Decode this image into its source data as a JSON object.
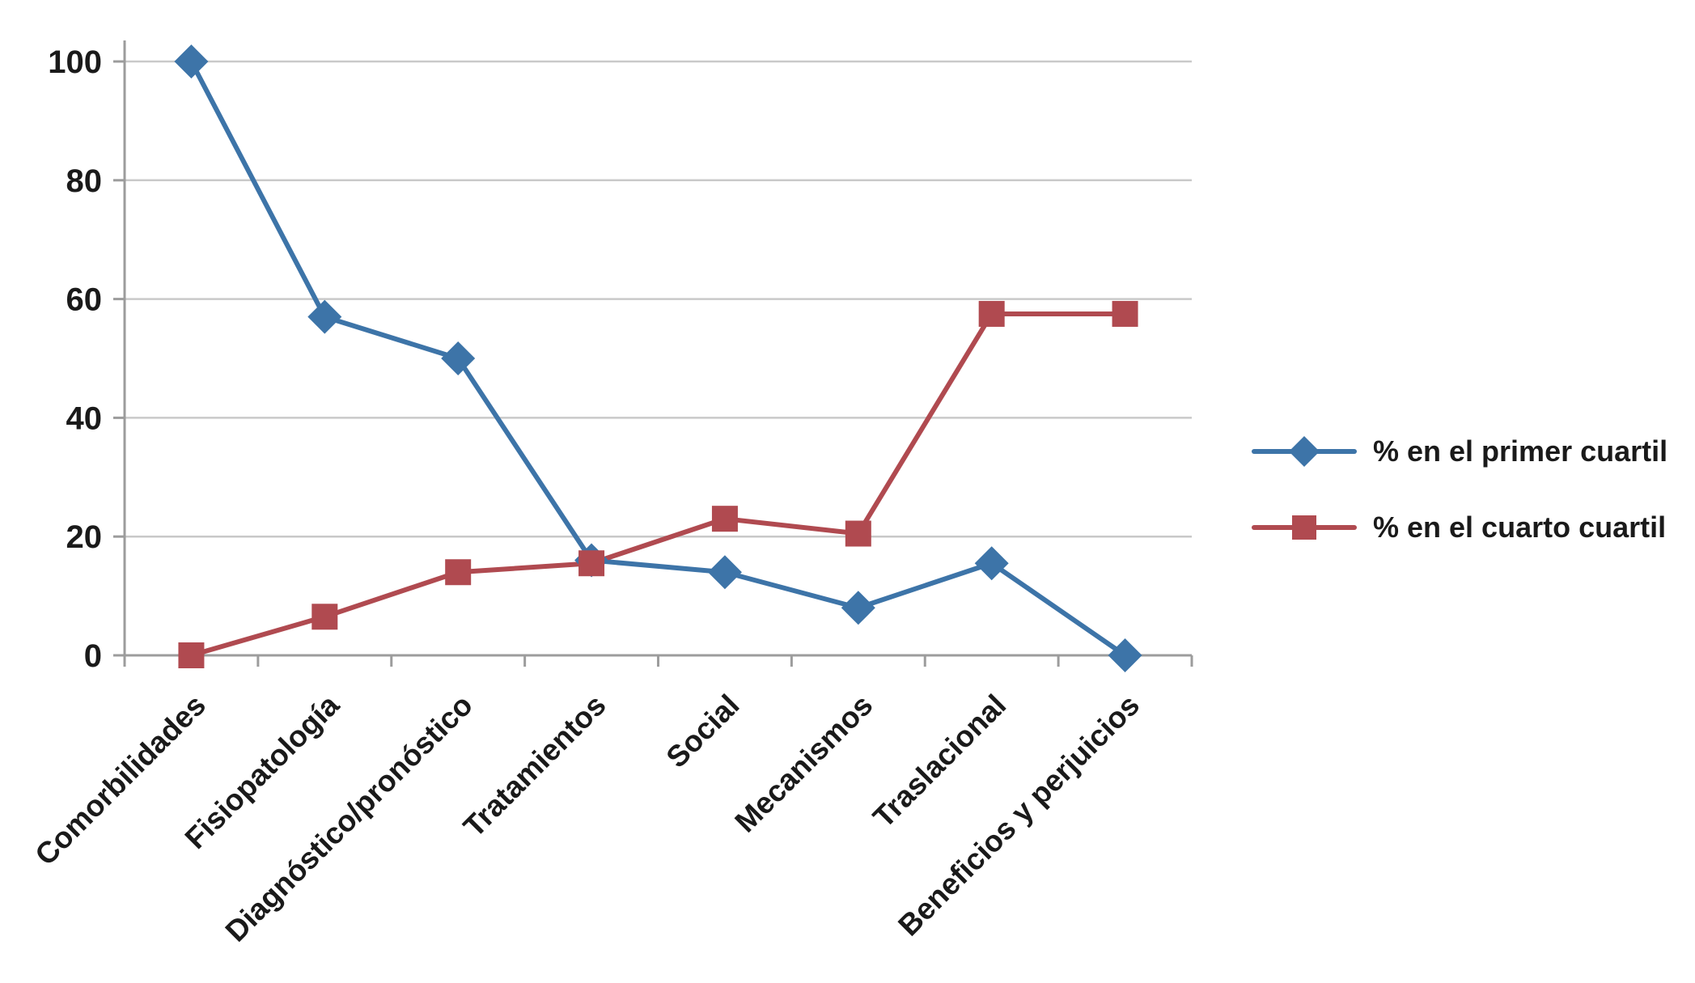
{
  "chart_data": {
    "type": "line",
    "categories": [
      "Comorbilidades",
      "Fisiopatología",
      "Diagnóstico/pronóstico",
      "Tratamientos",
      "Social",
      "Mecanismos",
      "Traslacional",
      "Beneficios y perjuicios"
    ],
    "series": [
      {
        "name": "% en el primer cuartil",
        "values": [
          100,
          57,
          50,
          16,
          14,
          8,
          15.5,
          0
        ],
        "color": "#3D74A8",
        "marker": "diamond"
      },
      {
        "name": "% en el cuarto cuartil",
        "values": [
          0,
          6.5,
          14,
          15.5,
          23,
          20.5,
          57.5,
          57.5
        ],
        "color": "#B04A50",
        "marker": "square"
      }
    ],
    "title": "",
    "xlabel": "",
    "ylabel": "",
    "ylim": [
      0,
      100
    ],
    "yticks": [
      0,
      20,
      40,
      60,
      80,
      100
    ],
    "grid": "horizontal",
    "legend_position": "right"
  },
  "colors": {
    "gridline": "#C9C9C9",
    "axis": "#9C9C9C",
    "tick_label": "#1A1A1A",
    "background": "#FFFFFF"
  }
}
